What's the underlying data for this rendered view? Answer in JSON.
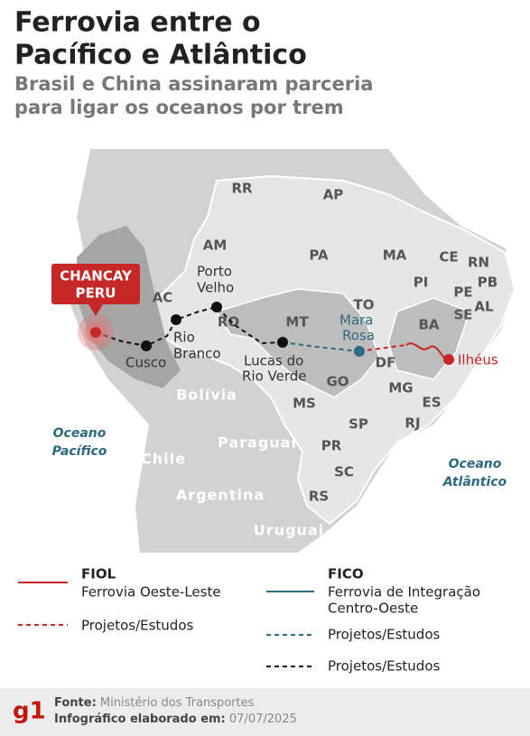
{
  "header": {
    "title": [
      "Ferrovia entre o",
      "Pacífico e Atlântico"
    ],
    "subtitle": [
      "Brasil e China assinaram parceria",
      "para ligar os oceanos por trem"
    ]
  },
  "map": {
    "states": [
      "RR",
      "AP",
      "AM",
      "PA",
      "MA",
      "CE",
      "RN",
      "PB",
      "PI",
      "PE",
      "AL",
      "SE",
      "BA",
      "TO",
      "AC",
      "RO",
      "MT",
      "GO",
      "DF",
      "MG",
      "ES",
      "MS",
      "SP",
      "RJ",
      "PR",
      "SC",
      "RS"
    ],
    "countries": [
      "Bolívia",
      "Paraguai",
      "Chile",
      "Argentina",
      "Uruguai"
    ],
    "oceans": [
      [
        "Oceano",
        "Pacífico"
      ],
      [
        "Oceano",
        "Atlântico"
      ]
    ],
    "origin": {
      "name": "CHANCAY",
      "country": "PERU"
    },
    "cities": [
      [
        "Cusco"
      ],
      [
        "Rio",
        "Branco"
      ],
      [
        "Porto",
        "Velho"
      ],
      [
        "Lucas do",
        "Rio Verde"
      ],
      [
        "Mara",
        "Rosa"
      ],
      [
        "Ilhéus"
      ]
    ]
  },
  "legend": {
    "fiol": {
      "name": "FIOL",
      "description": "Ferrovia Oeste-Leste",
      "projects": "Projetos/Estudos"
    },
    "fico": {
      "name": "FICO",
      "description": [
        "Ferrovia de Integração",
        "Centro-Oeste"
      ],
      "projects": "Projetos/Estudos"
    },
    "other": {
      "projects": "Projetos/Estudos"
    }
  },
  "footer": {
    "logo": "g1",
    "source_label": "Fonte:",
    "source": "Ministério dos Transportes",
    "date_label": "Infográfico elaborado em:",
    "date": "07/07/2025"
  }
}
